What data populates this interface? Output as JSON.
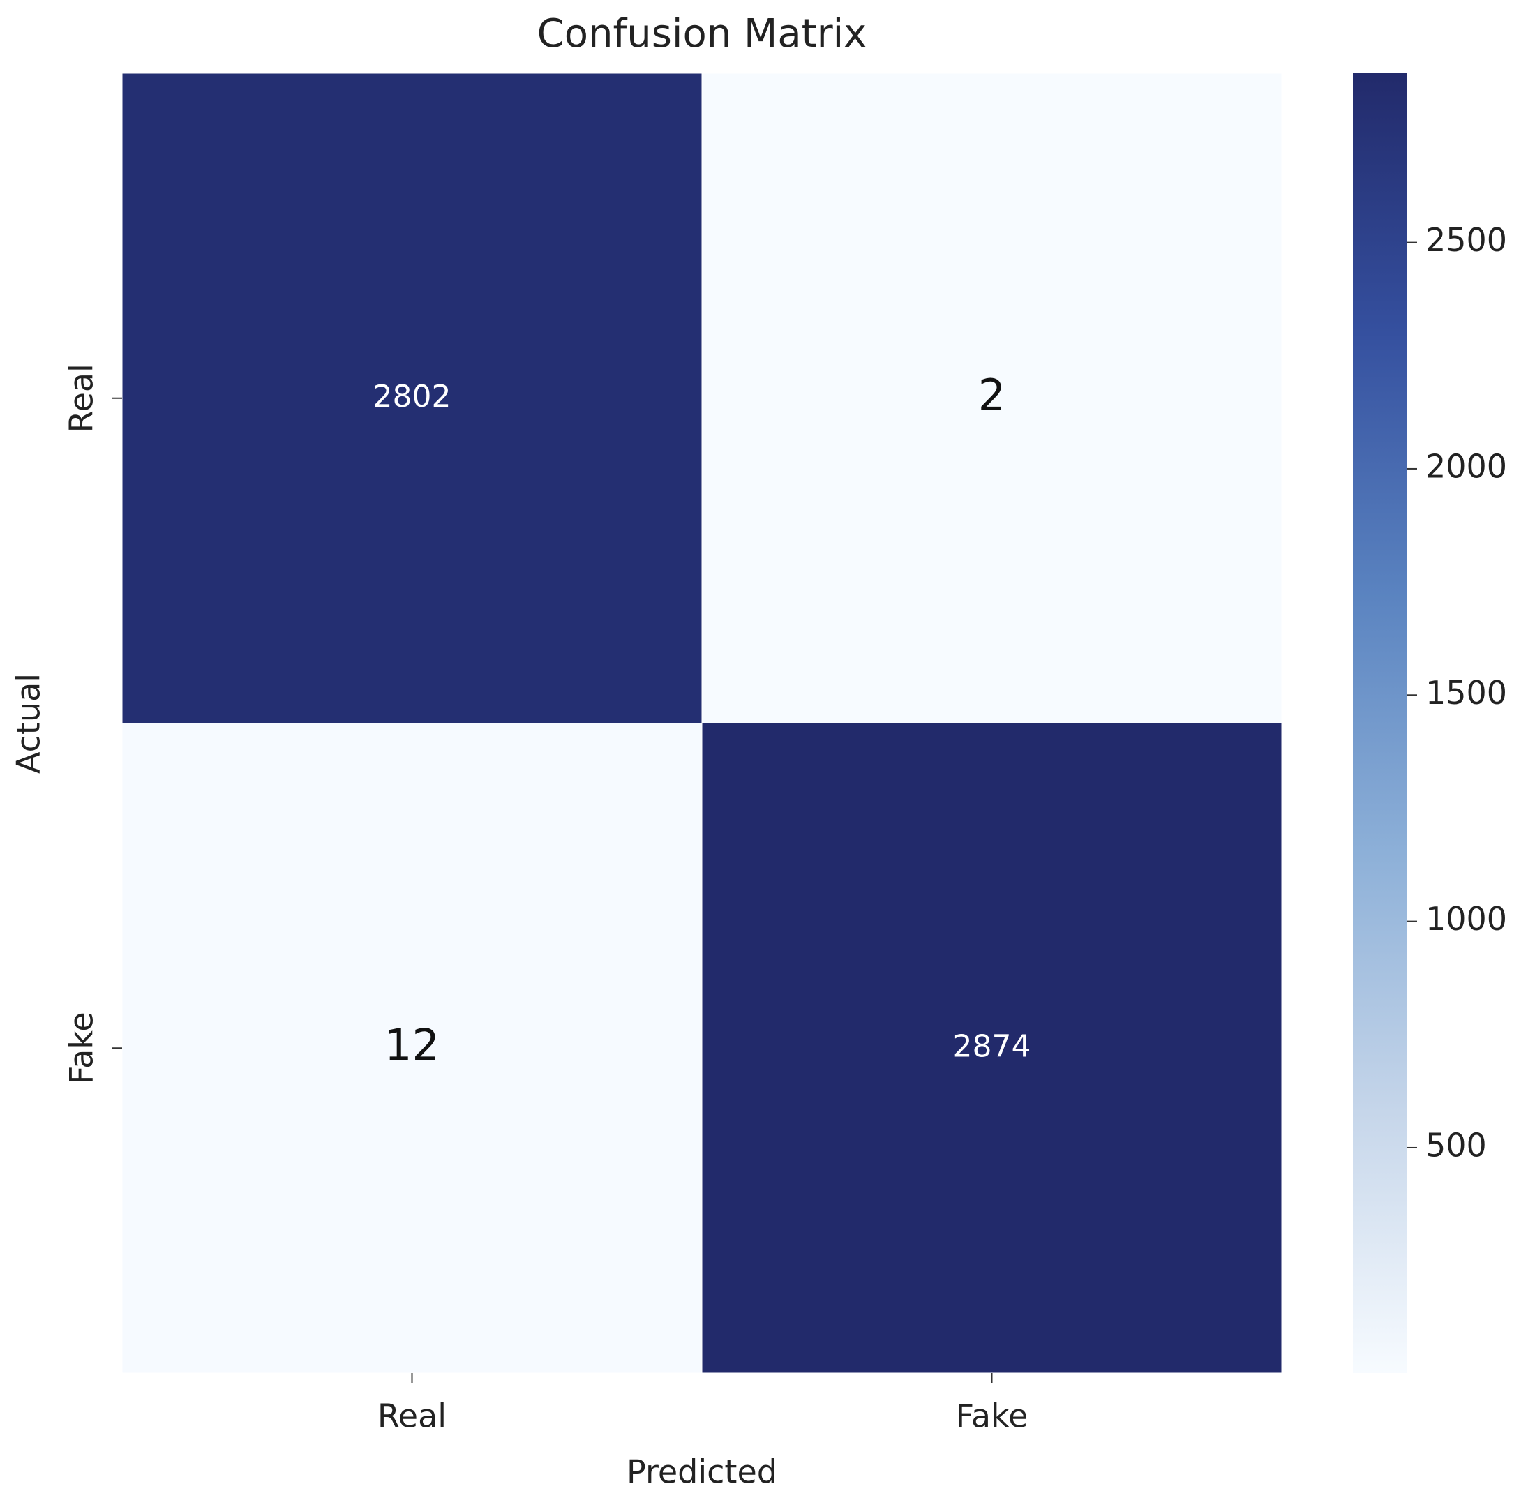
{
  "chart_data": {
    "type": "heatmap",
    "title": "Confusion Matrix",
    "x_label": "Predicted",
    "y_label": "Actual",
    "x_categories": [
      "Real",
      "Fake"
    ],
    "y_categories": [
      "Real",
      "Fake"
    ],
    "z": [
      [
        2802,
        2
      ],
      [
        12,
        2874
      ]
    ],
    "zlim": [
      2,
      2874
    ],
    "zticks": [
      500,
      1000,
      1500,
      2000,
      2500
    ],
    "colors": [
      "#f7fbff",
      "#c6d6ea",
      "#8db0d8",
      "#5a83c0",
      "#35509f",
      "#222a6b"
    ]
  }
}
